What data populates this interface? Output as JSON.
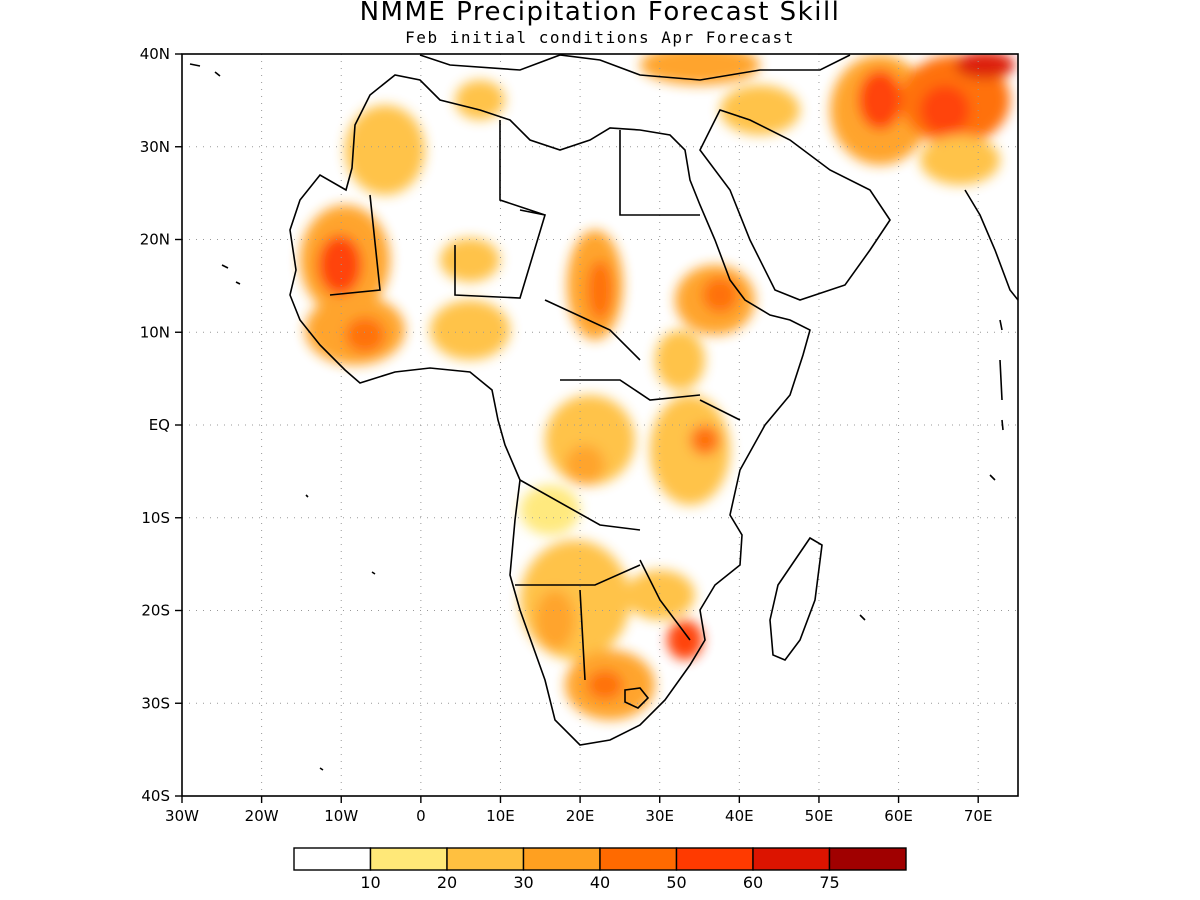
{
  "title": "NMME Precipitation Forecast Skill",
  "subtitle": "Feb initial conditions  Apr Forecast",
  "map": {
    "region": "Africa",
    "lon_range": [
      -30,
      75
    ],
    "lat_range": [
      -40,
      40
    ],
    "grid": true,
    "lat_labels": [
      "40N",
      "30N",
      "20N",
      "10N",
      "EQ",
      "10S",
      "20S",
      "30S",
      "40S"
    ],
    "lon_labels": [
      "30W",
      "20W",
      "10W",
      "0",
      "10E",
      "20E",
      "30E",
      "40E",
      "50E",
      "60E",
      "70E"
    ]
  },
  "colorbar": {
    "colors": [
      "#ffffff",
      "#ffe878",
      "#ffc040",
      "#ffa020",
      "#ff6a00",
      "#ff3a00",
      "#dc1400",
      "#a00000"
    ],
    "labels": [
      "10",
      "20",
      "30",
      "40",
      "50",
      "60",
      "75"
    ]
  }
}
